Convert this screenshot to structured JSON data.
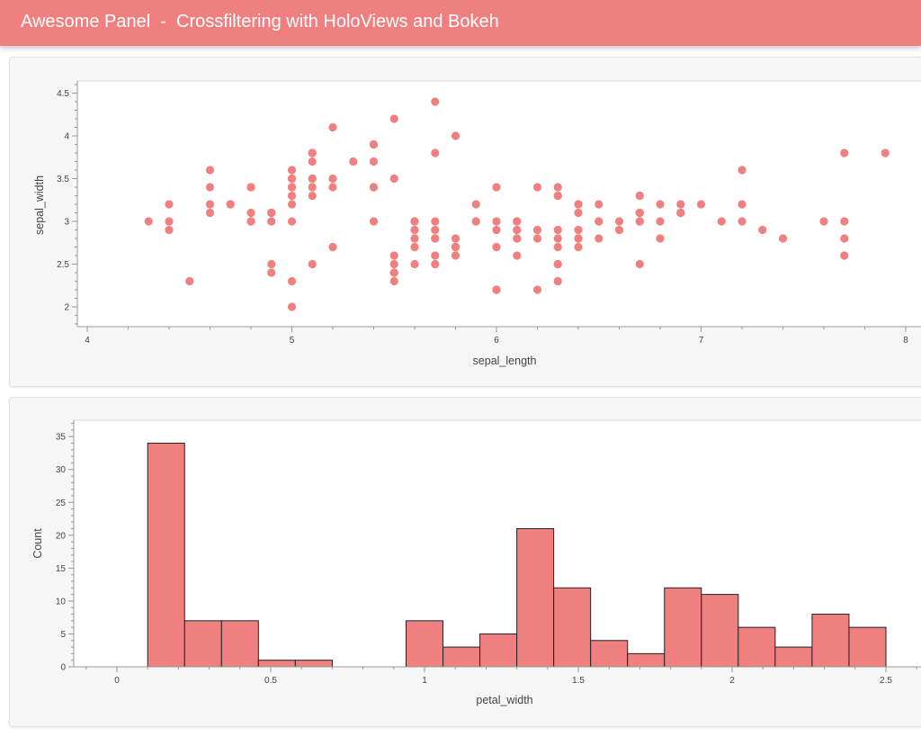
{
  "header": {
    "title": "Awesome Panel  -  Crossfiltering with HoloViews and Bokeh",
    "color": "#F08080"
  },
  "chart_data": [
    {
      "type": "scatter",
      "xlabel": "sepal_length",
      "ylabel": "sepal_width",
      "xlim": [
        3.95,
        8.1
      ],
      "ylim": [
        1.77,
        4.65
      ],
      "xticks": [
        "4",
        "5",
        "6",
        "7",
        "8"
      ],
      "yticks": [
        "2",
        "2.5",
        "3",
        "3.5",
        "4",
        "4.5"
      ],
      "color": "#F08080",
      "points": [
        [
          5.1,
          3.5
        ],
        [
          4.9,
          3.0
        ],
        [
          4.7,
          3.2
        ],
        [
          4.6,
          3.1
        ],
        [
          5.0,
          3.6
        ],
        [
          5.4,
          3.9
        ],
        [
          4.6,
          3.4
        ],
        [
          5.0,
          3.4
        ],
        [
          4.4,
          2.9
        ],
        [
          4.9,
          3.1
        ],
        [
          5.4,
          3.7
        ],
        [
          4.8,
          3.4
        ],
        [
          4.8,
          3.0
        ],
        [
          4.3,
          3.0
        ],
        [
          5.8,
          4.0
        ],
        [
          5.7,
          4.4
        ],
        [
          5.4,
          3.9
        ],
        [
          5.1,
          3.5
        ],
        [
          5.7,
          3.8
        ],
        [
          5.1,
          3.8
        ],
        [
          5.4,
          3.4
        ],
        [
          5.1,
          3.7
        ],
        [
          4.6,
          3.6
        ],
        [
          5.1,
          3.3
        ],
        [
          4.8,
          3.4
        ],
        [
          5.0,
          3.0
        ],
        [
          5.0,
          3.4
        ],
        [
          5.2,
          3.5
        ],
        [
          5.2,
          3.4
        ],
        [
          4.7,
          3.2
        ],
        [
          4.8,
          3.1
        ],
        [
          5.4,
          3.4
        ],
        [
          5.2,
          4.1
        ],
        [
          5.5,
          4.2
        ],
        [
          4.9,
          3.1
        ],
        [
          5.0,
          3.2
        ],
        [
          5.5,
          3.5
        ],
        [
          4.9,
          3.1
        ],
        [
          4.4,
          3.0
        ],
        [
          5.1,
          3.4
        ],
        [
          5.0,
          3.5
        ],
        [
          4.5,
          2.3
        ],
        [
          4.4,
          3.2
        ],
        [
          5.0,
          3.5
        ],
        [
          5.1,
          3.8
        ],
        [
          4.8,
          3.0
        ],
        [
          5.1,
          3.8
        ],
        [
          4.6,
          3.2
        ],
        [
          5.3,
          3.7
        ],
        [
          5.0,
          3.3
        ],
        [
          7.0,
          3.2
        ],
        [
          6.4,
          3.2
        ],
        [
          6.9,
          3.1
        ],
        [
          5.5,
          2.3
        ],
        [
          6.5,
          2.8
        ],
        [
          5.7,
          2.8
        ],
        [
          6.3,
          3.3
        ],
        [
          4.9,
          2.4
        ],
        [
          6.6,
          2.9
        ],
        [
          5.2,
          2.7
        ],
        [
          5.0,
          2.0
        ],
        [
          5.9,
          3.0
        ],
        [
          6.0,
          2.2
        ],
        [
          6.1,
          2.9
        ],
        [
          5.6,
          2.9
        ],
        [
          6.7,
          3.1
        ],
        [
          5.6,
          3.0
        ],
        [
          5.8,
          2.7
        ],
        [
          6.2,
          2.2
        ],
        [
          5.6,
          2.5
        ],
        [
          5.9,
          3.2
        ],
        [
          6.1,
          2.8
        ],
        [
          6.3,
          2.5
        ],
        [
          6.1,
          2.8
        ],
        [
          6.4,
          2.9
        ],
        [
          6.6,
          3.0
        ],
        [
          6.8,
          2.8
        ],
        [
          6.7,
          3.0
        ],
        [
          6.0,
          2.9
        ],
        [
          5.7,
          2.6
        ],
        [
          5.5,
          2.4
        ],
        [
          5.5,
          2.4
        ],
        [
          5.8,
          2.7
        ],
        [
          6.0,
          2.7
        ],
        [
          5.4,
          3.0
        ],
        [
          6.0,
          3.4
        ],
        [
          6.7,
          3.1
        ],
        [
          6.3,
          2.3
        ],
        [
          5.6,
          3.0
        ],
        [
          5.5,
          2.5
        ],
        [
          5.5,
          2.6
        ],
        [
          6.1,
          3.0
        ],
        [
          5.8,
          2.6
        ],
        [
          5.0,
          2.3
        ],
        [
          5.6,
          2.7
        ],
        [
          5.7,
          3.0
        ],
        [
          5.7,
          2.9
        ],
        [
          6.2,
          2.9
        ],
        [
          5.1,
          2.5
        ],
        [
          5.7,
          2.8
        ],
        [
          6.3,
          3.3
        ],
        [
          5.8,
          2.7
        ],
        [
          7.1,
          3.0
        ],
        [
          6.3,
          2.9
        ],
        [
          6.5,
          3.0
        ],
        [
          7.6,
          3.0
        ],
        [
          4.9,
          2.5
        ],
        [
          7.3,
          2.9
        ],
        [
          6.7,
          2.5
        ],
        [
          7.2,
          3.6
        ],
        [
          6.5,
          3.2
        ],
        [
          6.4,
          2.7
        ],
        [
          6.8,
          3.0
        ],
        [
          5.7,
          2.5
        ],
        [
          5.8,
          2.8
        ],
        [
          6.4,
          3.2
        ],
        [
          6.5,
          3.0
        ],
        [
          7.7,
          3.8
        ],
        [
          7.7,
          2.6
        ],
        [
          6.0,
          2.2
        ],
        [
          6.9,
          3.2
        ],
        [
          5.6,
          2.8
        ],
        [
          7.7,
          2.8
        ],
        [
          6.3,
          2.7
        ],
        [
          6.7,
          3.3
        ],
        [
          7.2,
          3.2
        ],
        [
          6.2,
          2.8
        ],
        [
          6.1,
          3.0
        ],
        [
          6.4,
          2.8
        ],
        [
          7.2,
          3.0
        ],
        [
          7.4,
          2.8
        ],
        [
          7.9,
          3.8
        ],
        [
          6.4,
          2.8
        ],
        [
          6.3,
          2.8
        ],
        [
          6.1,
          2.6
        ],
        [
          7.7,
          3.0
        ],
        [
          6.3,
          3.4
        ],
        [
          6.4,
          3.1
        ],
        [
          6.0,
          3.0
        ],
        [
          6.9,
          3.1
        ],
        [
          6.7,
          3.1
        ],
        [
          6.9,
          3.1
        ],
        [
          5.8,
          2.7
        ],
        [
          6.8,
          3.2
        ],
        [
          6.7,
          3.3
        ],
        [
          6.7,
          3.0
        ],
        [
          6.3,
          2.5
        ],
        [
          6.5,
          3.0
        ],
        [
          6.2,
          3.4
        ],
        [
          5.9,
          3.0
        ]
      ]
    },
    {
      "type": "bar",
      "xlabel": "petal_width",
      "ylabel": "Count",
      "xlim": [
        -0.14,
        2.62
      ],
      "ylim": [
        0,
        37.5
      ],
      "xticks": [
        "0",
        "0.5",
        "1",
        "1.5",
        "2",
        "2.5"
      ],
      "yticks": [
        "0",
        "5",
        "10",
        "15",
        "20",
        "25",
        "30",
        "35"
      ],
      "color": "#F08080",
      "bin_edges": [
        0.1,
        0.22,
        0.34,
        0.46,
        0.58,
        0.7,
        0.82,
        0.94,
        1.06,
        1.18,
        1.3,
        1.42,
        1.54,
        1.66,
        1.78,
        1.9,
        2.02,
        2.14,
        2.26,
        2.38,
        2.5
      ],
      "values": [
        34,
        7,
        7,
        1,
        1,
        0,
        0,
        7,
        3,
        5,
        21,
        12,
        4,
        2,
        12,
        11,
        6,
        3,
        8,
        6
      ]
    }
  ]
}
